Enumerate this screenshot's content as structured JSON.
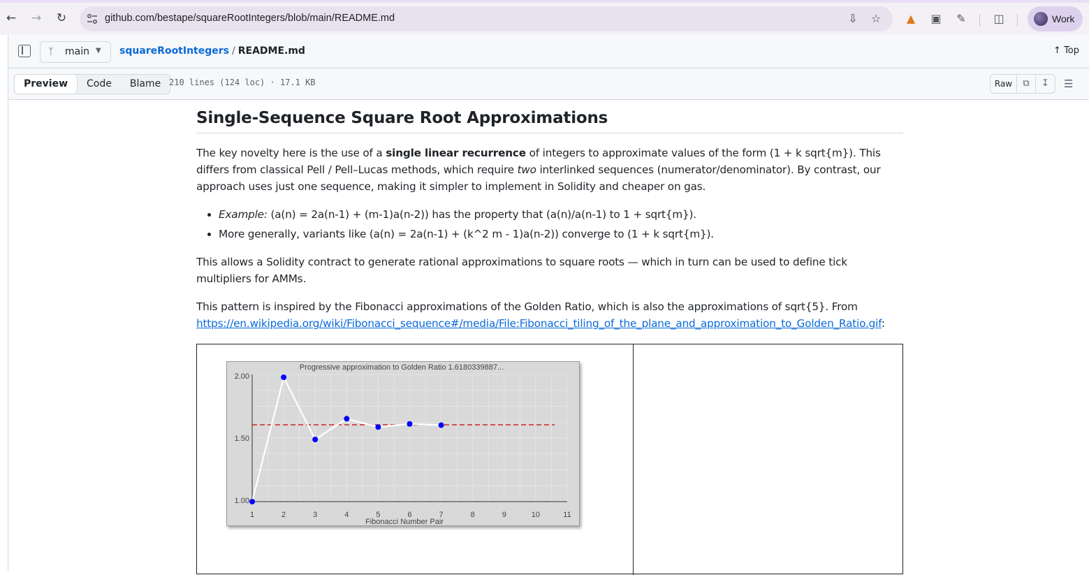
{
  "browser": {
    "url": "github.com/bestape/squareRootIntegers/blob/main/README.md",
    "profile_label": "Work",
    "icons": [
      "back-icon",
      "forward-icon",
      "reload-icon",
      "site-info-icon",
      "install-icon",
      "star-icon",
      "metamask-icon",
      "camera-icon",
      "extensions-icon",
      "tab-search-icon"
    ]
  },
  "header": {
    "branch": "main",
    "repo": "squareRootIntegers",
    "separator": "/",
    "file": "README.md",
    "top_label": "Top"
  },
  "toolbar": {
    "tabs": [
      "Preview",
      "Code",
      "Blame"
    ],
    "active_tab": "Preview",
    "file_info": "210 lines (124 loc) · 17.1 KB",
    "raw_label": "Raw"
  },
  "content": {
    "heading": "Single-Sequence Square Root Approximations",
    "p1_a": "The key novelty here is the use of a ",
    "p1_bold": "single linear recurrence",
    "p1_b": " of integers to approximate values of the form (1 + k sqrt{m}). This differs from classical Pell / Pell–Lucas methods, which require ",
    "p1_italic": "two",
    "p1_c": " interlinked sequences (numerator/denominator). By contrast, our approach uses just one sequence, making it simpler to implement in Solidity and cheaper on gas.",
    "li1_italic": "Example:",
    "li1_rest": " (a(n) = 2a(n-1) + (m-1)a(n-2)) has the property that (a(n)/a(n-1) to 1 + sqrt{m}).",
    "li2": "More generally, variants like (a(n) = 2a(n-1) + (k^2 m - 1)a(n-2)) converge to (1 + k sqrt{m}).",
    "p2": "This allows a Solidity contract to generate rational approximations to square roots — which in turn can be used to define tick multipliers for AMMs.",
    "p3_a": "This pattern is inspired by the Fibonacci approximations of the Golden Ratio, which is also the approximations of sqrt{5}. From",
    "p3_link": "https://en.wikipedia.org/wiki/Fibonacci_sequence#/media/File:Fibonacci_tiling_of_the_plane_and_approximation_to_Golden_Ratio.gif",
    "p3_end": ":"
  },
  "chart_data": {
    "type": "line",
    "title": "Progressive approximation to Golden Ratio  1.6180339887...",
    "xlabel": "Fibonacci Number Pair",
    "ylabel": "",
    "x_ticks": [
      "1",
      "2",
      "3",
      "4",
      "5",
      "6",
      "7",
      "8",
      "9",
      "10",
      "11"
    ],
    "y_ticks": [
      "1.00",
      "1.50",
      "2.00"
    ],
    "xlim": [
      1,
      11
    ],
    "ylim": [
      1.0,
      2.0
    ],
    "x": [
      1,
      2,
      3,
      4,
      5,
      6,
      7
    ],
    "values": [
      1.0,
      2.0,
      1.5,
      1.667,
      1.6,
      1.625,
      1.615
    ],
    "reference_line": 1.618,
    "colors": {
      "points": "#0000ff",
      "line": "#ffffff",
      "reference": "#cc0000",
      "background": "#d9d9d9"
    }
  }
}
